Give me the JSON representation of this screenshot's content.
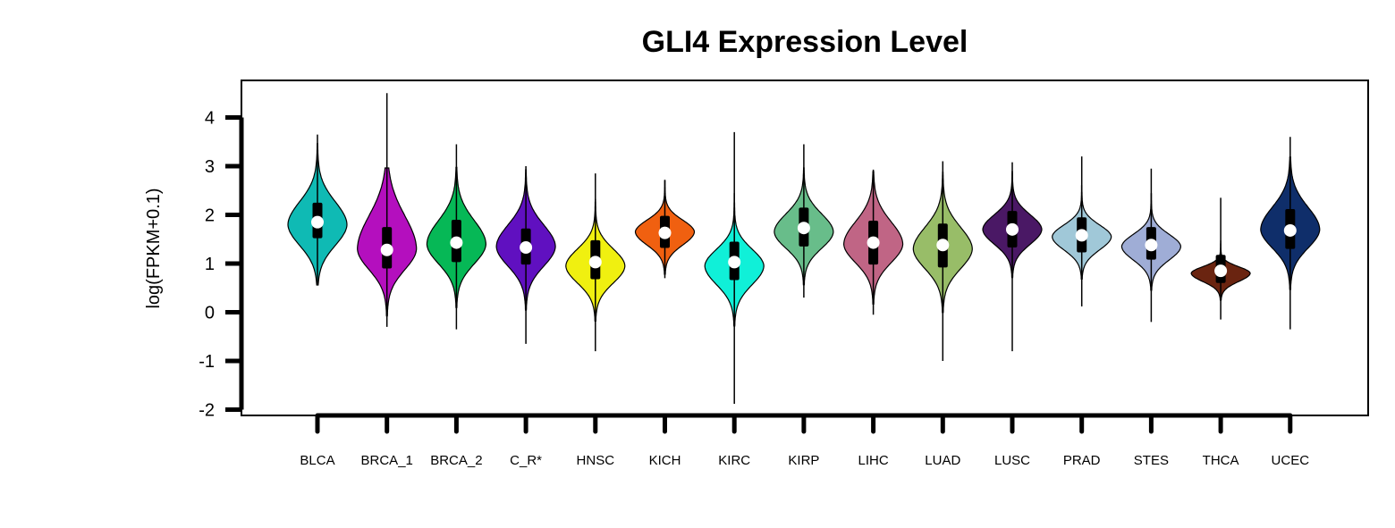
{
  "chart_data": {
    "type": "violin",
    "title": "GLI4 Expression Level",
    "xlabel": "",
    "ylabel": "log(FPKM+0.1)",
    "ylim": [
      -2,
      4
    ],
    "yticks": [
      4,
      3,
      2,
      1,
      0,
      -1,
      -2
    ],
    "grid": false,
    "legend": "none",
    "categories": [
      "BLCA",
      "BRCA_1",
      "BRCA_2",
      "C_R*",
      "HNSC",
      "KICH",
      "KIRC",
      "KIRP",
      "LIHC",
      "LUAD",
      "LUSC",
      "PRAD",
      "STES",
      "THCA",
      "UCEC"
    ],
    "colors": [
      "#0fbab4",
      "#b40fbe",
      "#06b856",
      "#6010c0",
      "#f0f010",
      "#f06010",
      "#10f0d8",
      "#68bd8a",
      "#c06585",
      "#98bd68",
      "#4a1865",
      "#a0c8d8",
      "#9fadd6",
      "#6a2410",
      "#0f2e6a"
    ],
    "series": [
      {
        "name": "BLCA",
        "min": 0.56,
        "max": 3.65,
        "q1": 1.52,
        "median": 1.85,
        "q3": 2.25,
        "mode": 1.8,
        "spread": 0.95,
        "upper_tail": 0.55
      },
      {
        "name": "BRCA_1",
        "min": -0.3,
        "max": 4.5,
        "q1": 0.9,
        "median": 1.28,
        "q3": 1.75,
        "mode": 1.3,
        "spread": 0.95,
        "upper_tail": 0.8
      },
      {
        "name": "BRCA_2",
        "min": -0.35,
        "max": 3.45,
        "q1": 1.03,
        "median": 1.43,
        "q3": 1.9,
        "mode": 1.4,
        "spread": 0.9,
        "upper_tail": 0.6
      },
      {
        "name": "C_R*",
        "min": -0.65,
        "max": 3.0,
        "q1": 0.98,
        "median": 1.33,
        "q3": 1.72,
        "mode": 1.35,
        "spread": 0.9,
        "upper_tail": 0.55
      },
      {
        "name": "HNSC",
        "min": -0.8,
        "max": 2.85,
        "q1": 0.68,
        "median": 1.03,
        "q3": 1.48,
        "mode": 0.95,
        "spread": 0.78,
        "upper_tail": 0.5
      },
      {
        "name": "KICH",
        "min": 0.7,
        "max": 2.72,
        "q1": 1.32,
        "median": 1.63,
        "q3": 1.98,
        "mode": 1.65,
        "spread": 0.6,
        "upper_tail": 0.45
      },
      {
        "name": "KIRC",
        "min": -1.88,
        "max": 3.7,
        "q1": 0.66,
        "median": 1.03,
        "q3": 1.45,
        "mode": 0.95,
        "spread": 0.85,
        "upper_tail": 0.45
      },
      {
        "name": "KIRP",
        "min": 0.3,
        "max": 3.45,
        "q1": 1.35,
        "median": 1.73,
        "q3": 2.15,
        "mode": 1.65,
        "spread": 0.75,
        "upper_tail": 0.55
      },
      {
        "name": "LIHC",
        "min": -0.05,
        "max": 2.93,
        "q1": 0.98,
        "median": 1.43,
        "q3": 1.88,
        "mode": 1.4,
        "spread": 0.85,
        "upper_tail": 0.6
      },
      {
        "name": "LUAD",
        "min": -1.0,
        "max": 3.1,
        "q1": 0.92,
        "median": 1.38,
        "q3": 1.82,
        "mode": 1.3,
        "spread": 0.9,
        "upper_tail": 0.55
      },
      {
        "name": "LUSC",
        "min": -0.8,
        "max": 3.08,
        "q1": 1.33,
        "median": 1.7,
        "q3": 2.08,
        "mode": 1.7,
        "spread": 0.68,
        "upper_tail": 0.5
      },
      {
        "name": "PRAD",
        "min": 0.12,
        "max": 3.2,
        "q1": 1.23,
        "median": 1.58,
        "q3": 1.95,
        "mode": 1.55,
        "spread": 0.6,
        "upper_tail": 0.45
      },
      {
        "name": "STES",
        "min": -0.2,
        "max": 2.95,
        "q1": 1.08,
        "median": 1.38,
        "q3": 1.75,
        "mode": 1.35,
        "spread": 0.62,
        "upper_tail": 0.45
      },
      {
        "name": "THCA",
        "min": -0.15,
        "max": 2.35,
        "q1": 0.6,
        "median": 0.85,
        "q3": 1.18,
        "mode": 0.8,
        "spread": 0.38,
        "upper_tail": 0.4
      },
      {
        "name": "UCEC",
        "min": -0.35,
        "max": 3.6,
        "q1": 1.3,
        "median": 1.68,
        "q3": 2.12,
        "mode": 1.7,
        "spread": 0.85,
        "upper_tail": 0.6
      }
    ]
  }
}
